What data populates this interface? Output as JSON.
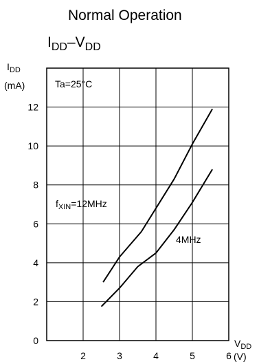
{
  "chart_data": {
    "type": "line",
    "title": "Normal Operation",
    "subtitle": {
      "main1": "I",
      "sub1": "DD",
      "sep": "–V",
      "sub2": "DD"
    },
    "ylabel": {
      "main": "I",
      "sub": "DD",
      "unit": "(mA)"
    },
    "xlabel": {
      "main": "V",
      "sub": "DD",
      "unit": "(V)"
    },
    "xlim": [
      1,
      6
    ],
    "ylim": [
      0,
      14
    ],
    "x_ticks": [
      2,
      3,
      4,
      5,
      6
    ],
    "y_ticks": [
      0,
      2,
      4,
      6,
      8,
      10,
      12
    ],
    "grid": true,
    "annotations": {
      "condition": "Ta=25°C",
      "label_12mhz": {
        "pre": "f",
        "sub": "XIN",
        "post": "=12MHz"
      },
      "label_4mhz": "4MHz"
    },
    "series": [
      {
        "name": "12MHz",
        "x": [
          2.55,
          3.0,
          3.6,
          4.0,
          4.5,
          5.0,
          5.55
        ],
        "y": [
          3.0,
          4.3,
          5.6,
          6.8,
          8.3,
          10.1,
          11.9
        ]
      },
      {
        "name": "4MHz",
        "x": [
          2.5,
          3.0,
          3.5,
          4.0,
          4.5,
          5.0,
          5.55
        ],
        "y": [
          1.75,
          2.7,
          3.8,
          4.5,
          5.7,
          7.1,
          8.8
        ]
      }
    ],
    "colors": {
      "line": "#000000",
      "grid": "#000000",
      "background": "#ffffff"
    }
  }
}
